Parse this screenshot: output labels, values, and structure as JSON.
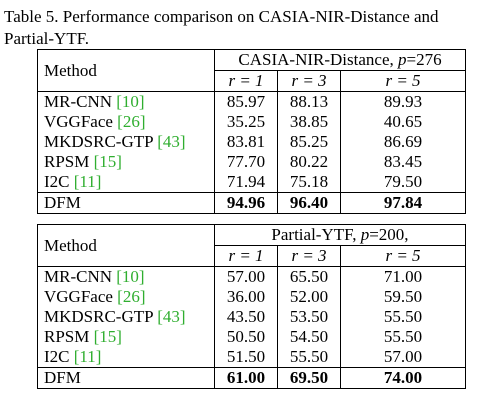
{
  "caption": {
    "prefix": "Table 5. Performance comparison on CASIA-NIR-Distance and Partial-YTF."
  },
  "sections": [
    {
      "method_header": "Method",
      "dataset_label": "CASIA-NIR-Distance, ",
      "dataset_p": "p",
      "dataset_value": "=276",
      "ranks": [
        "r = 1",
        "r = 3",
        "r = 5"
      ],
      "rows": [
        {
          "method": "MR-CNN ",
          "ref": "[10]",
          "values": [
            "85.97",
            "88.13",
            "89.93"
          ]
        },
        {
          "method": "VGGFace ",
          "ref": "[26]",
          "values": [
            "35.25",
            "38.85",
            "40.65"
          ]
        },
        {
          "method": "MKDSRC-GTP ",
          "ref": "[43]",
          "values": [
            "83.81",
            "85.25",
            "86.69"
          ]
        },
        {
          "method": "RPSM ",
          "ref": "[15]",
          "values": [
            "77.70",
            "80.22",
            "83.45"
          ]
        },
        {
          "method": "I2C ",
          "ref": "[11]",
          "values": [
            "71.94",
            "75.18",
            "79.50"
          ]
        }
      ],
      "final": {
        "method": "DFM",
        "values": [
          "94.96",
          "96.40",
          "97.84"
        ]
      }
    },
    {
      "method_header": "Method",
      "dataset_label": "Partial-YTF, ",
      "dataset_p": "p",
      "dataset_value": "=200,",
      "ranks": [
        "r = 1",
        "r = 3",
        "r = 5"
      ],
      "rows": [
        {
          "method": "MR-CNN ",
          "ref": "[10]",
          "values": [
            "57.00",
            "65.50",
            "71.00"
          ]
        },
        {
          "method": "VGGFace ",
          "ref": "[26]",
          "values": [
            "36.00",
            "52.00",
            "59.50"
          ]
        },
        {
          "method": "MKDSRC-GTP ",
          "ref": "[43]",
          "values": [
            "43.50",
            "53.50",
            "55.50"
          ]
        },
        {
          "method": "RPSM ",
          "ref": "[15]",
          "values": [
            "50.50",
            "54.50",
            "55.50"
          ]
        },
        {
          "method": "I2C ",
          "ref": "[11]",
          "values": [
            "51.50",
            "55.50",
            "57.00"
          ]
        }
      ],
      "final": {
        "method": "DFM",
        "values": [
          "61.00",
          "69.50",
          "74.00"
        ]
      }
    }
  ]
}
